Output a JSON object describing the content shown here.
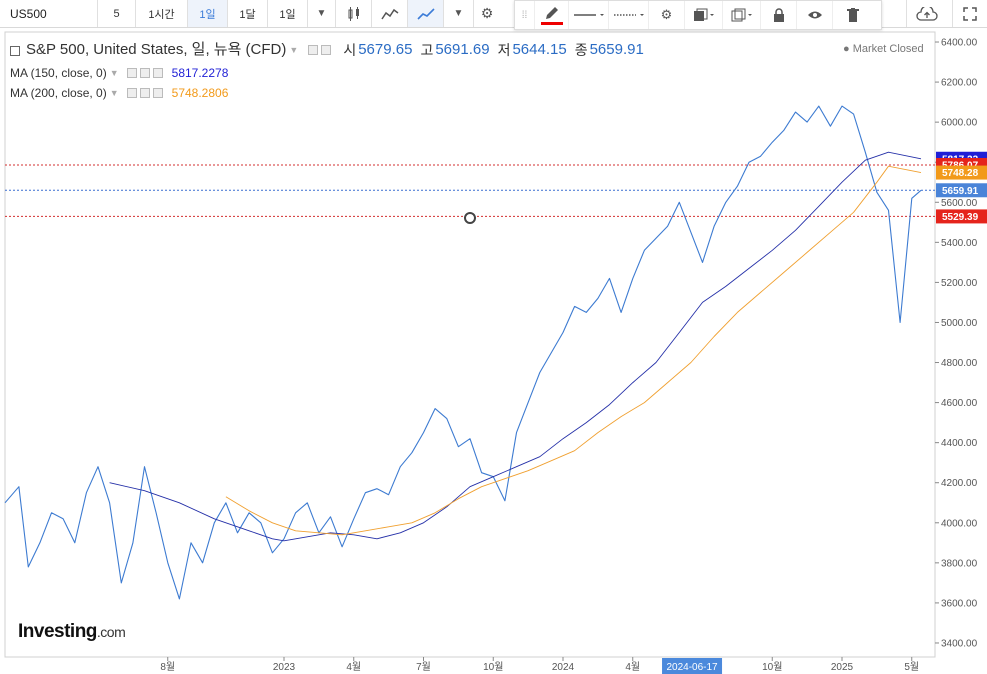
{
  "toolbar": {
    "symbol": "US500",
    "interval": "5",
    "buttons": [
      "1시간",
      "1일",
      "1달",
      "1일"
    ],
    "active_index": 1
  },
  "legend": {
    "main_title": "S&P 500, United States, 일, 뉴욕 (CFD)",
    "open_label": "시",
    "open": "5679.65",
    "high_label": "고",
    "high": "5691.69",
    "low_label": "저",
    "low": "5644.15",
    "close_label": "종",
    "close": "5659.91",
    "ma150_label": "MA (150, close, 0)",
    "ma150_value": "5817.2278",
    "ma200_label": "MA (200, close, 0)",
    "ma200_value": "5748.2806",
    "market_status": "Market Closed"
  },
  "logo": {
    "main": "Investing",
    "suffix": ".com"
  },
  "chart_data": {
    "type": "line",
    "title": "S&P 500, United States, 일, 뉴욕 (CFD)",
    "y_ticks": [
      3400,
      3600,
      3800,
      4000,
      4200,
      4400,
      4600,
      4800,
      5000,
      5200,
      5400,
      5600,
      5800,
      6000,
      6200,
      6400
    ],
    "y_tick_labels": [
      "3400.00",
      "3600.00",
      "3800.00",
      "4000.00",
      "4200.00",
      "4400.00",
      "4600.00",
      "4800.00",
      "5000.00",
      "5200.00",
      "5400.00",
      "5600.00",
      "5800.00",
      "6000.00",
      "6200.00",
      "6400.00"
    ],
    "ylim": [
      3330,
      6450
    ],
    "x_range_months": [
      0,
      40
    ],
    "x_ticks": [
      {
        "m": 7,
        "label": "8월"
      },
      {
        "m": 12,
        "label": "2023"
      },
      {
        "m": 15,
        "label": "4월"
      },
      {
        "m": 18,
        "label": "7월"
      },
      {
        "m": 21,
        "label": "10월"
      },
      {
        "m": 24,
        "label": "2024"
      },
      {
        "m": 27,
        "label": "4월"
      },
      {
        "m": 33,
        "label": "10월"
      },
      {
        "m": 36,
        "label": "2025"
      },
      {
        "m": 39,
        "label": "5월"
      }
    ],
    "time_cursor": {
      "m": 29.55,
      "label": "2024-06-17"
    },
    "hlines": [
      {
        "name": "level-5786",
        "value": 5786.07,
        "color": "#d32f2f"
      },
      {
        "name": "level-5660",
        "value": 5659.91,
        "color": "#3b6fd0"
      },
      {
        "name": "level-5529",
        "value": 5529.39,
        "color": "#d32f2f"
      }
    ],
    "price_tags": [
      {
        "value": 5817.23,
        "label": "5817.23",
        "color": "#1f1fd6"
      },
      {
        "value": 5786.07,
        "label": "5786.07",
        "color": "#e5241c"
      },
      {
        "value": 5748.28,
        "label": "5748.28",
        "color": "#f29a1a"
      },
      {
        "value": 5659.91,
        "label": "5659.91",
        "color": "#4a84d8"
      },
      {
        "value": 5529.39,
        "label": "5529.39",
        "color": "#e5241c"
      }
    ],
    "series": [
      {
        "name": "S&P 500",
        "color": "#3d7bd1",
        "x": [
          0,
          0.6,
          1.0,
          1.5,
          2.0,
          2.5,
          3.0,
          3.5,
          4.0,
          4.5,
          5.0,
          5.5,
          6.0,
          6.5,
          7.0,
          7.5,
          8.0,
          8.5,
          9.0,
          9.5,
          10.0,
          10.5,
          11.0,
          11.5,
          12.0,
          12.5,
          13.0,
          13.5,
          14.0,
          14.5,
          15.0,
          15.5,
          16.0,
          16.5,
          17.0,
          17.5,
          18.0,
          18.5,
          19.0,
          19.5,
          20.0,
          20.5,
          21.0,
          21.5,
          22.0,
          22.5,
          23.0,
          23.5,
          24.0,
          24.5,
          25.0,
          25.5,
          26.0,
          26.5,
          27.0,
          27.5,
          28.0,
          28.5,
          29.0,
          29.5,
          30.0,
          30.5,
          31.0,
          31.5,
          32.0,
          32.5,
          33.0,
          33.5,
          34.0,
          34.5,
          35.0,
          35.5,
          36.0,
          36.5,
          37.0,
          37.5,
          38.0,
          38.5,
          39.0,
          39.4
        ],
        "values": [
          4100,
          4180,
          3780,
          3900,
          4050,
          4020,
          3900,
          4150,
          4280,
          4100,
          3700,
          3900,
          4280,
          4050,
          3800,
          3620,
          3900,
          3800,
          4000,
          4100,
          3950,
          4050,
          4000,
          3850,
          3920,
          4050,
          4100,
          3950,
          4030,
          3880,
          4020,
          4150,
          4170,
          4140,
          4280,
          4350,
          4450,
          4570,
          4520,
          4380,
          4420,
          4250,
          4230,
          4110,
          4450,
          4600,
          4750,
          4850,
          4950,
          5080,
          5050,
          5120,
          5220,
          5050,
          5220,
          5360,
          5420,
          5480,
          5600,
          5450,
          5300,
          5480,
          5600,
          5680,
          5800,
          5830,
          5900,
          5960,
          6050,
          6000,
          6080,
          5980,
          6080,
          6040,
          5850,
          5650,
          5560,
          5000,
          5620,
          5660
        ]
      },
      {
        "name": "MA (150, close, 0)",
        "color": "#2530a8",
        "x": [
          4.5,
          6.0,
          7.5,
          9.0,
          10.5,
          11.5,
          12.0,
          13.0,
          14.0,
          15.0,
          16.0,
          17.0,
          18.0,
          19.0,
          20.0,
          21.0,
          22.0,
          23.0,
          24.0,
          25.0,
          26.0,
          27.0,
          28.0,
          29.0,
          30.0,
          31.0,
          32.0,
          33.0,
          34.0,
          35.0,
          36.0,
          37.0,
          38.0,
          39.4
        ],
        "values": [
          4200,
          4160,
          4100,
          4020,
          3960,
          3920,
          3910,
          3930,
          3950,
          3940,
          3920,
          3950,
          4000,
          4080,
          4180,
          4230,
          4280,
          4330,
          4420,
          4500,
          4590,
          4700,
          4800,
          4950,
          5100,
          5180,
          5270,
          5360,
          5460,
          5580,
          5700,
          5810,
          5850,
          5817
        ]
      },
      {
        "name": "MA (200, close, 0)",
        "color": "#f0a030",
        "x": [
          9.5,
          10.5,
          11.5,
          12.5,
          13.5,
          14.5,
          15.5,
          16.5,
          17.5,
          18.5,
          19.5,
          20.5,
          21.5,
          22.5,
          23.5,
          24.5,
          25.5,
          26.5,
          27.5,
          28.5,
          29.5,
          30.5,
          31.5,
          32.5,
          33.5,
          34.5,
          35.5,
          36.5,
          37.5,
          38.0,
          39.4
        ],
        "values": [
          4130,
          4060,
          4000,
          3960,
          3950,
          3940,
          3960,
          3980,
          4000,
          4050,
          4120,
          4180,
          4220,
          4260,
          4310,
          4360,
          4450,
          4530,
          4600,
          4700,
          4800,
          4930,
          5050,
          5150,
          5250,
          5350,
          5450,
          5550,
          5700,
          5780,
          5748
        ]
      }
    ]
  }
}
